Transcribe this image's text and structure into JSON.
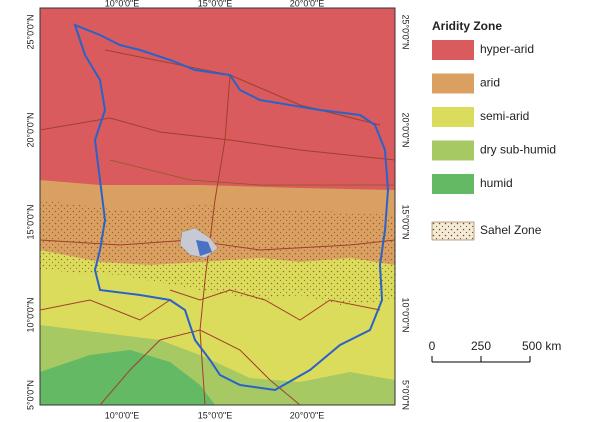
{
  "map": {
    "longitude_labels": [
      "10°0'0\"E",
      "15°0'0\"E",
      "20°0'0\"E"
    ],
    "latitude_labels": [
      "25°0'0\"N",
      "20°0'0\"N",
      "15°0'0\"N",
      "10°0'0\"N",
      "5°0'0\"N"
    ]
  },
  "legend": {
    "title": "Aridity Zone",
    "items": [
      {
        "label": "hyper-arid",
        "color": "#d95b5e"
      },
      {
        "label": "arid",
        "color": "#d9a062"
      },
      {
        "label": "semi-arid",
        "color": "#dcdc5c"
      },
      {
        "label": "dry sub-humid",
        "color": "#a6c964"
      },
      {
        "label": "humid",
        "color": "#64b964"
      }
    ],
    "sahel": "Sahel Zone"
  },
  "scale_bar": {
    "labels": [
      "0",
      "250",
      "500 km"
    ]
  }
}
